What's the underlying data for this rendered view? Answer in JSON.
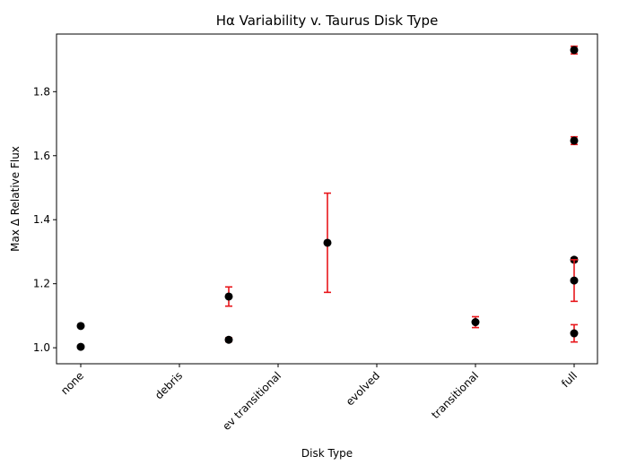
{
  "chart_data": {
    "type": "scatter",
    "title": "Hα Variability v. Taurus Disk Type",
    "xlabel": "Disk Type",
    "ylabel": "Max Δ Relative Flux",
    "categories": [
      "none",
      "debris",
      "ev transitional",
      "evolved",
      "transitional",
      "full"
    ],
    "ylim": [
      0.95,
      1.98
    ],
    "yticks": [
      "1.0",
      "1.2",
      "1.4",
      "1.6",
      "1.8"
    ],
    "grid": false,
    "marker_color": "#000000",
    "errorbar_color": "#e8161b",
    "points": [
      {
        "x": "none",
        "x_offset": 0.0,
        "y": 1.068,
        "yerr": null
      },
      {
        "x": "none",
        "x_offset": 0.0,
        "y": 1.003,
        "yerr": null
      },
      {
        "x": "debris",
        "x_offset": 0.5,
        "y": 1.16,
        "yerr": 0.03
      },
      {
        "x": "debris",
        "x_offset": 0.5,
        "y": 1.025,
        "yerr": 0.006
      },
      {
        "x": "ev transitional",
        "x_offset": 0.5,
        "y": 1.328,
        "yerr": 0.155
      },
      {
        "x": "transitional",
        "x_offset": 0.0,
        "y": 1.08,
        "yerr": 0.017
      },
      {
        "x": "full",
        "x_offset": 0.0,
        "y": 1.93,
        "yerr": 0.012
      },
      {
        "x": "full",
        "x_offset": 0.0,
        "y": 1.647,
        "yerr": 0.012
      },
      {
        "x": "full",
        "x_offset": 0.0,
        "y": 1.275,
        "yerr": 0.006
      },
      {
        "x": "full",
        "x_offset": 0.0,
        "y": 1.21,
        "yerr": 0.065
      },
      {
        "x": "full",
        "x_offset": 0.0,
        "y": 1.045,
        "yerr": 0.027
      }
    ]
  }
}
